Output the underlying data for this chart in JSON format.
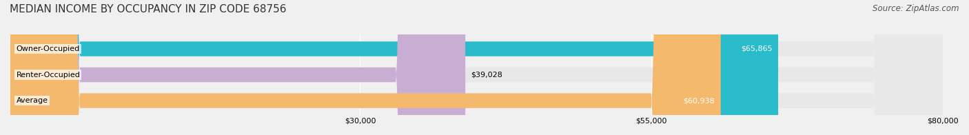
{
  "title": "MEDIAN INCOME BY OCCUPANCY IN ZIP CODE 68756",
  "source": "Source: ZipAtlas.com",
  "categories": [
    "Owner-Occupied",
    "Renter-Occupied",
    "Average"
  ],
  "values": [
    65865,
    39028,
    60938
  ],
  "bar_colors": [
    "#2bbccc",
    "#c9aed4",
    "#f5b96e"
  ],
  "label_colors": [
    "white",
    "black",
    "white"
  ],
  "value_labels": [
    "$65,865",
    "$39,028",
    "$60,938"
  ],
  "xlim": [
    0,
    80000
  ],
  "xticks": [
    30000,
    55000,
    80000
  ],
  "xtick_labels": [
    "$30,000",
    "$55,000",
    "$80,000"
  ],
  "bg_color": "#f0f0f0",
  "bar_bg_color": "#e8e8e8",
  "title_fontsize": 11,
  "source_fontsize": 8.5,
  "label_fontsize": 8,
  "bar_height": 0.55,
  "fig_width": 14.06,
  "fig_height": 1.96
}
